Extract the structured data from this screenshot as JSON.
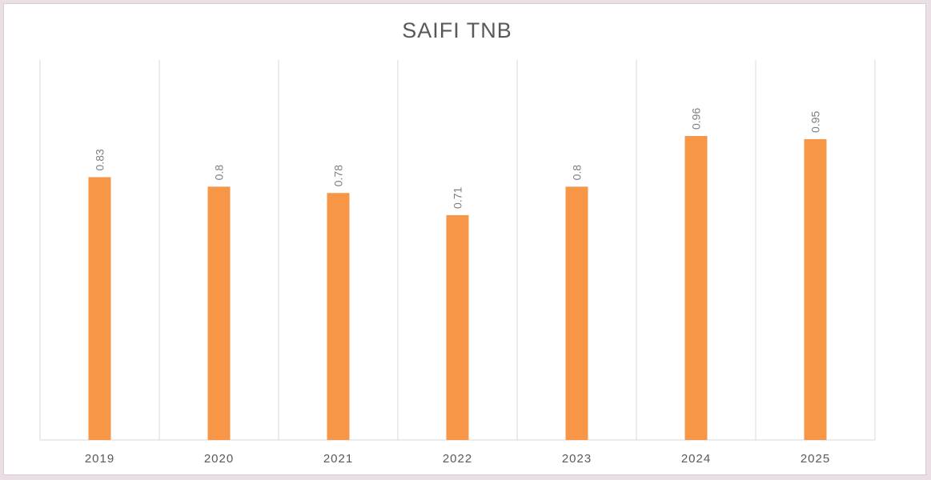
{
  "chart_data": {
    "type": "bar",
    "title": "SAIFI TNB",
    "categories": [
      "2019",
      "2020",
      "2021",
      "2022",
      "2023",
      "2024",
      "2025"
    ],
    "values": [
      0.83,
      0.8,
      0.78,
      0.71,
      0.8,
      0.96,
      0.95
    ],
    "data_labels": [
      "0.83",
      "0.8",
      "0.78",
      "0.71",
      "0.8",
      "0.96",
      "0.95"
    ],
    "xlabel": "",
    "ylabel": "",
    "ylim": [
      0,
      1.2
    ],
    "grid": "vertical category separators",
    "legend": "none",
    "colors": {
      "bar": "#f79646",
      "grid": "#d9d9d9",
      "text": "#595959",
      "data_label": "#7f7f7f"
    }
  }
}
